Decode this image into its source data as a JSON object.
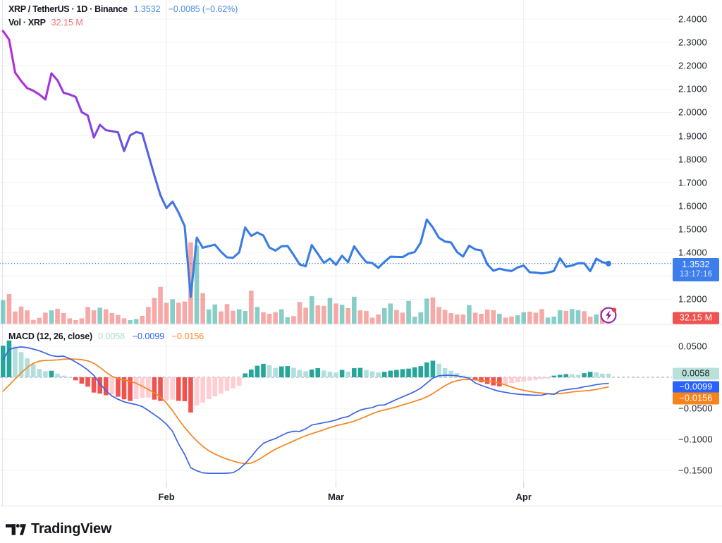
{
  "header": {
    "title": "XRP / TetherUS · 1D · Binance",
    "price": "1.3532",
    "change": "−0.0085 (−0.62%)"
  },
  "volume_row": {
    "label": "Vol · XRP",
    "value": "32.15 M"
  },
  "macd_row": {
    "title": "MACD (12, 26, close)",
    "hist": "0.0058",
    "macd": "−0.0099",
    "signal": "−0.0156"
  },
  "badges": {
    "price": {
      "value": "1.3532",
      "countdown": "13:17:16"
    },
    "volume": "32.15 M",
    "macd_hist": "0.0058",
    "macd_line": "−0.0099",
    "macd_signal": "−0.0156"
  },
  "logo": {
    "brand": "TradingView"
  },
  "colors": {
    "price_line_gradient_start": "#BB2AD8",
    "price_line_gradient_end": "#3679E8",
    "price_badge_bg": "#3D7EEC",
    "volume_badge_bg": "#EF5350",
    "volume_up": "rgba(38,166,154,0.55)",
    "volume_down": "rgba(239,83,80,0.50)",
    "hist_grow_above": "#26A69A",
    "hist_fall_above": "#B2DFDB",
    "hist_grow_below": "#EF5350",
    "hist_fall_below": "#FFCDD2",
    "macd_line": "#3C64E4",
    "signal_line": "#F7831C",
    "grid": "#F0F3FA",
    "text_dark": "#131722"
  },
  "chart_data": [
    {
      "type": "line",
      "title": "XRP / TetherUS price, 1D line chart",
      "name": "close",
      "values": [
        2.3487,
        2.3124,
        2.1705,
        2.1343,
        2.1041,
        2.0932,
        2.0769,
        2.0558,
        2.1675,
        2.1373,
        2.0845,
        2.0769,
        2.0667,
        2.0014,
        1.987,
        1.8928,
        1.9471,
        1.9242,
        1.9199,
        1.9148,
        1.8351,
        1.9021,
        1.916,
        1.9097,
        1.8197,
        1.7297,
        1.6458,
        1.5908,
        1.618,
        1.5712,
        1.5138,
        1.2104,
        1.464,
        1.4205,
        1.4278,
        1.4338,
        1.4036,
        1.3795,
        1.378,
        1.4006,
        1.5075,
        1.4716,
        1.4861,
        1.4731,
        1.4217,
        1.4085,
        1.4272,
        1.4284,
        1.3903,
        1.3493,
        1.3417,
        1.432,
        1.3946,
        1.3559,
        1.3743,
        1.3478,
        1.3867,
        1.3589,
        1.4272,
        1.3906,
        1.3589,
        1.3553,
        1.3348,
        1.3601,
        1.3822,
        1.3813,
        1.3807,
        1.3958,
        1.4024,
        1.4432,
        1.5416,
        1.5075,
        1.4634,
        1.4474,
        1.4432,
        1.4021,
        1.3834,
        1.4296,
        1.4139,
        1.4094,
        1.3496,
        1.3224,
        1.3312,
        1.3251,
        1.3212,
        1.336,
        1.3447,
        1.3158,
        1.3143,
        1.3109,
        1.3146,
        1.3212,
        1.3755,
        1.3393,
        1.3447,
        1.3544,
        1.3541,
        1.3206,
        1.3737,
        1.3592,
        1.3532
      ],
      "last_value": 1.3532,
      "ylim": [
        1.15,
        2.45
      ],
      "y_grid_values": [
        2.4,
        2.3,
        2.2,
        2.1,
        2.0,
        1.9,
        1.8,
        1.7,
        1.6,
        1.5,
        1.4,
        1.3,
        1.2
      ],
      "y_ticks": [
        {
          "label": "2.4000",
          "value": 2.4
        },
        {
          "label": "2.3000",
          "value": 2.3
        },
        {
          "label": "2.2000",
          "value": 2.2
        },
        {
          "label": "2.1000",
          "value": 2.1
        },
        {
          "label": "2.0000",
          "value": 2.0
        },
        {
          "label": "1.9000",
          "value": 1.9
        },
        {
          "label": "1.8000",
          "value": 1.8
        },
        {
          "label": "1.7000",
          "value": 1.7
        },
        {
          "label": "1.6000",
          "value": 1.6
        },
        {
          "label": "1.5000",
          "value": 1.5
        },
        {
          "label": "1.4000",
          "value": 1.4
        },
        {
          "label": "1.2000",
          "value": 1.2
        }
      ],
      "x_ticks": [
        "Feb",
        "Mar",
        "Apr"
      ],
      "grid": true,
      "legend_position": "top-left"
    },
    {
      "type": "bar",
      "title": "Volume (millions XRP)",
      "values": [
        119.3,
        150.4,
        61.8,
        87.2,
        67.5,
        19.3,
        29.7,
        56.1,
        67.5,
        75.4,
        53.6,
        27.2,
        17.9,
        27.2,
        84.7,
        67.5,
        81.1,
        73.2,
        53.6,
        44.3,
        27.2,
        17.9,
        23.6,
        39.3,
        85.0,
        130.4,
        186.9,
        105.8,
        123.6,
        106.5,
        112.2,
        412.3,
        394.8,
        154.7,
        72.5,
        97.5,
        62.5,
        99.3,
        65.4,
        73.2,
        64.3,
        167.9,
        84.7,
        58.2,
        50.0,
        58.2,
        73.2,
        32.9,
        38.6,
        110.0,
        81.1,
        139.0,
        92.9,
        90.4,
        130.8,
        102.2,
        96.1,
        79.0,
        136.5,
        67.5,
        64.0,
        30.7,
        46.8,
        79.0,
        102.2,
        69.7,
        56.1,
        115.8,
        35.4,
        58.2,
        127.2,
        133.3,
        84.7,
        69.7,
        53.6,
        46.8,
        46.8,
        93.6,
        55.7,
        50.4,
        71.8,
        68.6,
        50.4,
        30.7,
        36.1,
        42.5,
        57.9,
        61.1,
        55.7,
        74.0,
        30.7,
        36.1,
        68.6,
        64.3,
        74.0,
        68.6,
        63.2,
        36.1,
        46.8,
        66.5,
        32.15
      ],
      "unit": "M",
      "last_value": 32.15
    },
    {
      "type": "macd",
      "title": "MACD (12, 26, close)",
      "series": [
        {
          "name": "macd",
          "values": [
            0.0284,
            0.0447,
            0.0476,
            0.049,
            0.0477,
            0.0455,
            0.0427,
            0.0389,
            0.0349,
            0.0335,
            0.0341,
            0.0301,
            0.0246,
            0.0187,
            0.0118,
            0.0031,
            -0.0101,
            -0.0217,
            -0.0301,
            -0.0354,
            -0.0395,
            -0.042,
            -0.044,
            -0.0473,
            -0.0534,
            -0.0603,
            -0.0672,
            -0.0757,
            -0.0871,
            -0.1074,
            -0.1243,
            -0.1457,
            -0.1507,
            -0.154,
            -0.1548,
            -0.1548,
            -0.1548,
            -0.1546,
            -0.1537,
            -0.1481,
            -0.1392,
            -0.1279,
            -0.1159,
            -0.1065,
            -0.1021,
            -0.0987,
            -0.0938,
            -0.0893,
            -0.0869,
            -0.0873,
            -0.0832,
            -0.0769,
            -0.0751,
            -0.0731,
            -0.0714,
            -0.0689,
            -0.0653,
            -0.0633,
            -0.0577,
            -0.0528,
            -0.0505,
            -0.0488,
            -0.045,
            -0.0446,
            -0.0401,
            -0.0357,
            -0.0315,
            -0.0274,
            -0.023,
            -0.0175,
            -0.0093,
            -0.0014,
            0.0025,
            0.0033,
            0.0032,
            0.0024,
            0.0004,
            -0.0015,
            -0.0091,
            -0.0131,
            -0.0165,
            -0.0199,
            -0.0227,
            -0.0242,
            -0.0261,
            -0.0272,
            -0.0279,
            -0.0285,
            -0.029,
            -0.0288,
            -0.0265,
            -0.0275,
            -0.0219,
            -0.0201,
            -0.0186,
            -0.0176,
            -0.0152,
            -0.0139,
            -0.0118,
            -0.0106,
            -0.0099
          ]
        },
        {
          "name": "signal",
          "values": [
            -0.0224,
            -0.0127,
            -0.0026,
            0.0073,
            0.0158,
            0.0224,
            0.0261,
            0.0273,
            0.0274,
            0.0281,
            0.0291,
            0.0295,
            0.0292,
            0.0284,
            0.0265,
            0.0226,
            0.016,
            0.0081,
            0.0016,
            -0.0023,
            -0.0042,
            -0.0063,
            -0.0097,
            -0.0145,
            -0.0197,
            -0.0251,
            -0.0318,
            -0.0413,
            -0.0538,
            -0.0678,
            -0.0809,
            -0.0923,
            -0.1025,
            -0.1114,
            -0.1184,
            -0.1238,
            -0.1282,
            -0.1319,
            -0.135,
            -0.1377,
            -0.1393,
            -0.1382,
            -0.1339,
            -0.1279,
            -0.1216,
            -0.1159,
            -0.1112,
            -0.1069,
            -0.1026,
            -0.0983,
            -0.0942,
            -0.0908,
            -0.0877,
            -0.0844,
            -0.081,
            -0.0781,
            -0.0758,
            -0.0735,
            -0.0707,
            -0.0671,
            -0.0628,
            -0.0586,
            -0.0551,
            -0.0526,
            -0.0502,
            -0.0476,
            -0.0446,
            -0.0417,
            -0.0387,
            -0.0355,
            -0.0316,
            -0.0262,
            -0.0198,
            -0.0135,
            -0.0086,
            -0.0053,
            -0.0037,
            -0.0035,
            -0.0042,
            -0.005,
            -0.0059,
            -0.0072,
            -0.0093,
            -0.0124,
            -0.0158,
            -0.0187,
            -0.021,
            -0.0229,
            -0.0244,
            -0.0255,
            -0.0263,
            -0.0268,
            -0.0263,
            -0.0251,
            -0.0236,
            -0.0226,
            -0.0219,
            -0.021,
            -0.0195,
            -0.0175,
            -0.0156
          ]
        },
        {
          "name": "histogram",
          "values": [
            0.0508,
            0.0593,
            0.0494,
            0.0406,
            0.0305,
            0.0212,
            0.0134,
            0.0098,
            0.0105,
            0.0059,
            0.0026,
            0.001,
            -0.0049,
            -0.0103,
            -0.0151,
            -0.0246,
            -0.0263,
            -0.029,
            -0.0278,
            -0.0314,
            -0.0355,
            -0.0382,
            -0.0352,
            -0.033,
            -0.0328,
            -0.036,
            -0.0382,
            -0.0371,
            -0.036,
            -0.038,
            -0.0386,
            -0.0568,
            -0.0455,
            -0.0408,
            -0.0353,
            -0.0306,
            -0.0262,
            -0.0218,
            -0.0177,
            -0.0136,
            0.0063,
            0.0125,
            0.0186,
            0.0217,
            0.0194,
            0.0152,
            0.0175,
            0.0181,
            0.0152,
            0.0119,
            0.0097,
            0.0125,
            0.0147,
            0.011,
            0.0091,
            0.0077,
            0.0119,
            0.0091,
            0.0147,
            0.0152,
            0.0119,
            0.0097,
            0.0077,
            0.0088,
            0.0107,
            0.0119,
            0.0132,
            0.014,
            0.016,
            0.018,
            0.0239,
            0.0267,
            0.0219,
            0.0148,
            0.0107,
            0.0067,
            0.0027,
            0.0011,
            -0.0044,
            -0.0081,
            -0.0108,
            -0.0132,
            -0.0148,
            -0.0122,
            -0.0092,
            -0.0081,
            -0.0068,
            -0.0052,
            -0.0041,
            -0.0028,
            -0.002,
            0.0027,
            0.0039,
            0.0052,
            0.005,
            0.0039,
            0.0067,
            0.0088,
            0.008,
            0.0059,
            0.0058
          ]
        }
      ],
      "y_ticks": [
        {
          "label": "0.0500",
          "value": 0.05
        },
        {
          "label": "−0.0500",
          "value": -0.05
        },
        {
          "label": "−0.1000",
          "value": -0.1
        },
        {
          "label": "−0.1500",
          "value": -0.15
        }
      ],
      "last": {
        "macd": -0.0099,
        "signal": -0.0156,
        "hist": 0.0058
      }
    }
  ],
  "x_axis": {
    "months": [
      {
        "label": "Feb",
        "index": 27
      },
      {
        "label": "Mar",
        "index": 55
      },
      {
        "label": "Apr",
        "index": 86
      }
    ]
  }
}
